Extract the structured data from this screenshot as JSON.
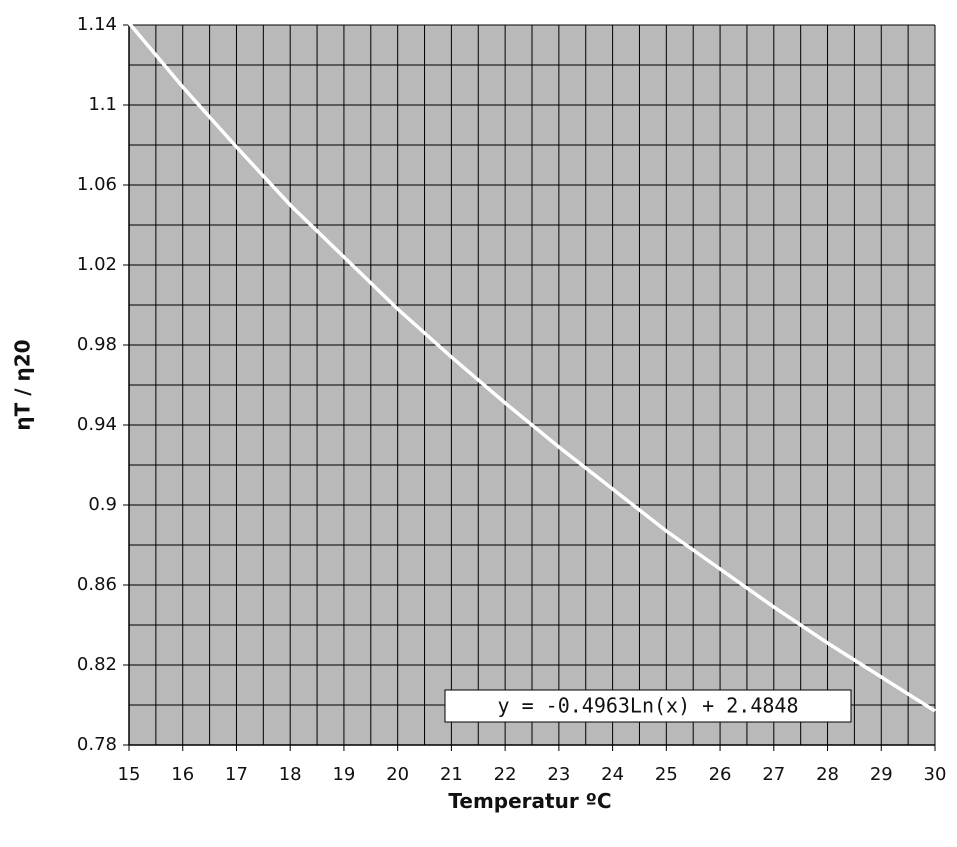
{
  "chart_data": {
    "type": "line",
    "x_label": "Temperatur ºC",
    "y_label": "ηT / η20",
    "annotation": "y = -0.4963Ln(x) + 2.4848",
    "x": [
      15,
      16,
      17,
      18,
      19,
      20,
      21,
      22,
      23,
      24,
      25,
      26,
      27,
      28,
      29,
      30
    ],
    "values": [
      1.141,
      1.109,
      1.079,
      1.05,
      1.024,
      0.998,
      0.974,
      0.951,
      0.929,
      0.908,
      0.887,
      0.868,
      0.849,
      0.831,
      0.814,
      0.797
    ],
    "color": "#ffffff",
    "xlim": [
      15,
      30
    ],
    "xticks": [
      15,
      16,
      17,
      18,
      19,
      20,
      21,
      22,
      23,
      24,
      25,
      26,
      27,
      28,
      29,
      30
    ],
    "ylim": [
      0.78,
      1.14
    ],
    "yticks": [
      0.78,
      0.82,
      0.86,
      0.9,
      0.94,
      0.98,
      1.02,
      1.06,
      1.1,
      1.14
    ],
    "grid": true,
    "minor_grid": true
  }
}
